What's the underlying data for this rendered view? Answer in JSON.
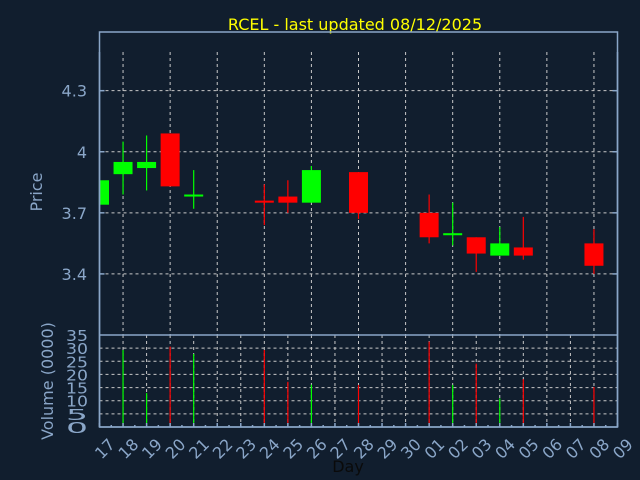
{
  "chart_data": {
    "type": "candlestick",
    "title": "RCEL - last updated 08/12/2025",
    "xlabel": "Day",
    "ylabel": "Price",
    "volume_ylabel": "Volume (0000)",
    "x_ticks": [
      "17",
      "18",
      "19",
      "20",
      "21",
      "22",
      "23",
      "24",
      "25",
      "26",
      "27",
      "28",
      "29",
      "30",
      "01",
      "02",
      "03",
      "04",
      "05",
      "06",
      "07",
      "08",
      "09"
    ],
    "price_ticks": [
      "3.4",
      "3.7",
      "4",
      "4.3"
    ],
    "price_ylim": [
      3.1,
      4.49
    ],
    "volume_ticks": [
      "0",
      "5",
      "10",
      "15",
      "20",
      "25",
      "30",
      "35"
    ],
    "volume_ylim": [
      0,
      35
    ],
    "grid": true,
    "colors": {
      "up": "#00ff00",
      "down": "#ff0000",
      "title": "#ffff00",
      "background": "#111e2e",
      "axis": "#8aa6c8"
    },
    "candles": [
      {
        "day": "17",
        "open": 3.74,
        "high": 3.86,
        "low": 3.74,
        "close": 3.86,
        "volume": null
      },
      {
        "day": "18",
        "open": 3.89,
        "high": 4.05,
        "low": 3.79,
        "close": 3.95,
        "volume": 29.3
      },
      {
        "day": "19",
        "open": 3.92,
        "high": 4.08,
        "low": 3.81,
        "close": 3.95,
        "volume": 12.9
      },
      {
        "day": "20",
        "open": 4.09,
        "high": 4.09,
        "low": 3.83,
        "close": 3.83,
        "volume": 30.6
      },
      {
        "day": "21",
        "open": 3.78,
        "high": 3.91,
        "low": 3.72,
        "close": 3.79,
        "volume": 27.8
      },
      {
        "day": "24",
        "open": 3.76,
        "high": 3.84,
        "low": 3.64,
        "close": 3.75,
        "volume": 29.3
      },
      {
        "day": "25",
        "open": 3.78,
        "high": 3.86,
        "low": 3.7,
        "close": 3.75,
        "volume": 17.2
      },
      {
        "day": "26",
        "open": 3.75,
        "high": 3.93,
        "low": 3.75,
        "close": 3.91,
        "volume": 16.1
      },
      {
        "day": "28",
        "open": 3.9,
        "high": 3.9,
        "low": 3.67,
        "close": 3.7,
        "volume": 16.0
      },
      {
        "day": "01",
        "open": 3.7,
        "high": 3.79,
        "low": 3.55,
        "close": 3.58,
        "volume": 32.5
      },
      {
        "day": "02",
        "open": 3.59,
        "high": 3.75,
        "low": 3.54,
        "close": 3.6,
        "volume": 16.0
      },
      {
        "day": "03",
        "open": 3.58,
        "high": 3.58,
        "low": 3.41,
        "close": 3.5,
        "volume": 24.1
      },
      {
        "day": "04",
        "open": 3.49,
        "high": 3.63,
        "low": 3.49,
        "close": 3.55,
        "volume": 10.9
      },
      {
        "day": "05",
        "open": 3.53,
        "high": 3.68,
        "low": 3.47,
        "close": 3.49,
        "volume": 18.2
      },
      {
        "day": "08",
        "open": 3.55,
        "high": 3.62,
        "low": 3.4,
        "close": 3.44,
        "volume": 15.2
      }
    ]
  }
}
